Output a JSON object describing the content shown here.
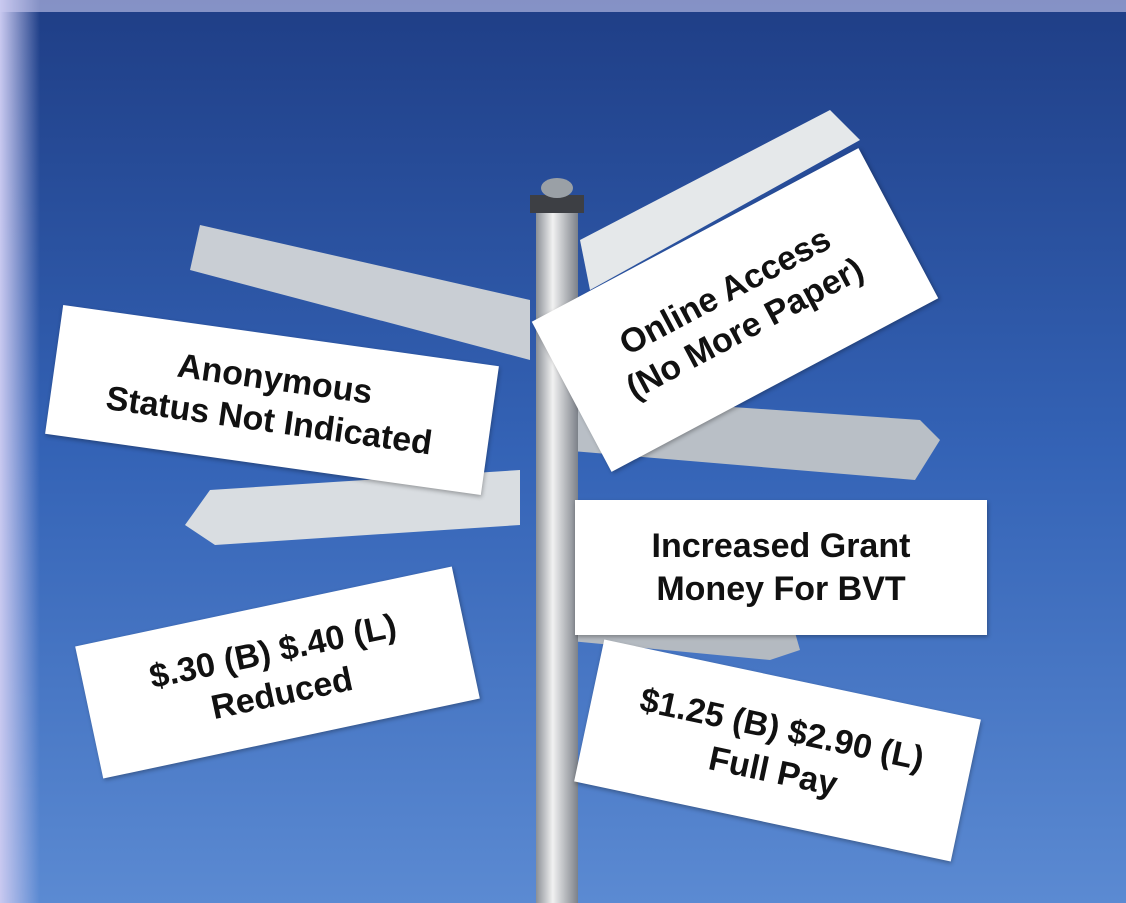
{
  "signs": [
    {
      "lines": [
        "Anonymous",
        "Status Not Indicated"
      ]
    },
    {
      "lines": [
        "Online Access",
        "(No More Paper)"
      ]
    },
    {
      "lines": [
        "Increased Grant",
        "Money For BVT"
      ]
    },
    {
      "lines": [
        "$.30 (B) $.40 (L)",
        "Reduced"
      ]
    },
    {
      "lines": [
        "$1.25 (B) $2.90 (L)",
        "Full Pay"
      ]
    }
  ]
}
